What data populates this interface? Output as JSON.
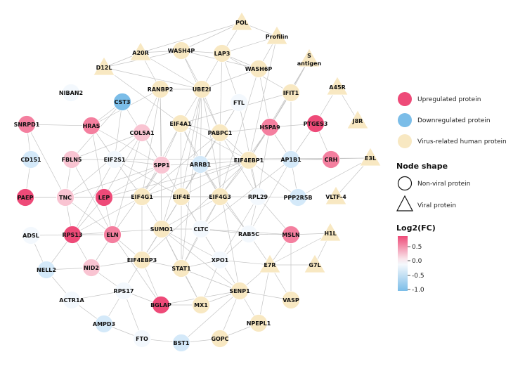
{
  "colors": {
    "up_strong": "#ee4a78",
    "up_mid": "#f47f9f",
    "up_light": "#f9c4d2",
    "neutral": "#f3f8fd",
    "down_light": "#d4e9f9",
    "down_strong": "#7bbde8",
    "virus": "#f8e8c2",
    "edge": "#c4c4c4",
    "node_stroke": "#ffffff",
    "legend_stroke": "#111111"
  },
  "nodes": [
    {
      "id": "POL",
      "shape": "tri",
      "color": "virus"
    },
    {
      "id": "Profilin",
      "shape": "tri",
      "color": "virus"
    },
    {
      "id": "A20R",
      "shape": "tri",
      "color": "virus"
    },
    {
      "id": "WASH4P",
      "shape": "circ",
      "color": "virus"
    },
    {
      "id": "LAP3",
      "shape": "circ",
      "color": "virus"
    },
    {
      "id": "S antigen",
      "shape": "tri",
      "color": "virus"
    },
    {
      "id": "D12L",
      "shape": "tri",
      "color": "virus"
    },
    {
      "id": "WASH6P",
      "shape": "circ",
      "color": "virus"
    },
    {
      "id": "NIBAN2",
      "shape": "circ",
      "color": "neutral"
    },
    {
      "id": "RANBP2",
      "shape": "circ",
      "color": "virus"
    },
    {
      "id": "UBE2I",
      "shape": "circ",
      "color": "virus"
    },
    {
      "id": "A45R",
      "shape": "tri",
      "color": "virus"
    },
    {
      "id": "IFIT1",
      "shape": "circ",
      "color": "virus"
    },
    {
      "id": "CST3",
      "shape": "circ",
      "color": "down_strong"
    },
    {
      "id": "FTL",
      "shape": "circ",
      "color": "neutral"
    },
    {
      "id": "SNRPD1",
      "shape": "circ",
      "color": "up_mid"
    },
    {
      "id": "HRAS",
      "shape": "circ",
      "color": "up_mid"
    },
    {
      "id": "EIF4A1",
      "shape": "circ",
      "color": "virus"
    },
    {
      "id": "PABPC1",
      "shape": "circ",
      "color": "virus"
    },
    {
      "id": "HSPA9",
      "shape": "circ",
      "color": "up_mid"
    },
    {
      "id": "PTGES3",
      "shape": "circ",
      "color": "up_strong"
    },
    {
      "id": "J8R",
      "shape": "tri",
      "color": "virus"
    },
    {
      "id": "COL5A1",
      "shape": "circ",
      "color": "up_light"
    },
    {
      "id": "CD151",
      "shape": "circ",
      "color": "down_light"
    },
    {
      "id": "FBLN5",
      "shape": "circ",
      "color": "up_light"
    },
    {
      "id": "EIF2S1",
      "shape": "circ",
      "color": "neutral"
    },
    {
      "id": "SPP1",
      "shape": "circ",
      "color": "up_light"
    },
    {
      "id": "ARRB1",
      "shape": "circ",
      "color": "down_light"
    },
    {
      "id": "EIF4EBP1",
      "shape": "circ",
      "color": "virus"
    },
    {
      "id": "AP1B1",
      "shape": "circ",
      "color": "down_light"
    },
    {
      "id": "CRH",
      "shape": "circ",
      "color": "up_mid"
    },
    {
      "id": "E3L",
      "shape": "tri",
      "color": "virus"
    },
    {
      "id": "PAEP",
      "shape": "circ",
      "color": "up_strong"
    },
    {
      "id": "TNC",
      "shape": "circ",
      "color": "up_light"
    },
    {
      "id": "LEP",
      "shape": "circ",
      "color": "up_strong"
    },
    {
      "id": "EIF4G1",
      "shape": "circ",
      "color": "virus"
    },
    {
      "id": "EIF4E",
      "shape": "circ",
      "color": "virus"
    },
    {
      "id": "EIF4G3",
      "shape": "circ",
      "color": "virus"
    },
    {
      "id": "RPL29",
      "shape": "circ",
      "color": "neutral"
    },
    {
      "id": "PPP2R5B",
      "shape": "circ",
      "color": "down_light"
    },
    {
      "id": "VLTF-4",
      "shape": "tri",
      "color": "virus"
    },
    {
      "id": "SUMO1",
      "shape": "circ",
      "color": "virus"
    },
    {
      "id": "CLTC",
      "shape": "circ",
      "color": "neutral"
    },
    {
      "id": "RAB5C",
      "shape": "circ",
      "color": "neutral"
    },
    {
      "id": "ADSL",
      "shape": "circ",
      "color": "neutral"
    },
    {
      "id": "RPS13",
      "shape": "circ",
      "color": "up_strong"
    },
    {
      "id": "ELN",
      "shape": "circ",
      "color": "up_mid"
    },
    {
      "id": "MSLN",
      "shape": "circ",
      "color": "up_mid"
    },
    {
      "id": "H1L",
      "shape": "tri",
      "color": "virus"
    },
    {
      "id": "NELL2",
      "shape": "circ",
      "color": "down_light"
    },
    {
      "id": "NID2",
      "shape": "circ",
      "color": "up_light"
    },
    {
      "id": "EIF4EBP3",
      "shape": "circ",
      "color": "virus"
    },
    {
      "id": "STAT1",
      "shape": "circ",
      "color": "virus"
    },
    {
      "id": "XPO1",
      "shape": "circ",
      "color": "neutral"
    },
    {
      "id": "E7R",
      "shape": "tri",
      "color": "virus"
    },
    {
      "id": "G7L",
      "shape": "tri",
      "color": "virus"
    },
    {
      "id": "ACTR1A",
      "shape": "circ",
      "color": "neutral"
    },
    {
      "id": "RPS17",
      "shape": "circ",
      "color": "neutral"
    },
    {
      "id": "BGLAP",
      "shape": "circ",
      "color": "up_strong"
    },
    {
      "id": "MX1",
      "shape": "circ",
      "color": "virus"
    },
    {
      "id": "SENP1",
      "shape": "circ",
      "color": "virus"
    },
    {
      "id": "VASP",
      "shape": "circ",
      "color": "virus"
    },
    {
      "id": "AMPD3",
      "shape": "circ",
      "color": "down_light"
    },
    {
      "id": "NPEPL1",
      "shape": "circ",
      "color": "virus"
    },
    {
      "id": "FTO",
      "shape": "circ",
      "color": "neutral"
    },
    {
      "id": "BST1",
      "shape": "circ",
      "color": "down_light"
    },
    {
      "id": "GOPC",
      "shape": "circ",
      "color": "virus"
    }
  ],
  "edges": [
    [
      "POL",
      "A20R"
    ],
    [
      "POL",
      "LAP3"
    ],
    [
      "POL",
      "WASH4P"
    ],
    [
      "POL",
      "Profilin"
    ],
    [
      "Profilin",
      "WASH6P"
    ],
    [
      "Profilin",
      "LAP3"
    ],
    [
      "Profilin",
      "EIF4EBP1"
    ],
    [
      "A20R",
      "D12L"
    ],
    [
      "A20R",
      "WASH4P"
    ],
    [
      "A20R",
      "RANBP2"
    ],
    [
      "A20R",
      "UBE2I"
    ],
    [
      "D12L",
      "WASH4P"
    ],
    [
      "D12L",
      "EIF4A1"
    ],
    [
      "D12L",
      "UBE2I"
    ],
    [
      "WASH4P",
      "WASH6P"
    ],
    [
      "WASH4P",
      "UBE2I"
    ],
    [
      "WASH4P",
      "LAP3"
    ],
    [
      "WASH4P",
      "PABPC1"
    ],
    [
      "LAP3",
      "WASH6P"
    ],
    [
      "LAP3",
      "UBE2I"
    ],
    [
      "LAP3",
      "IFIT1"
    ],
    [
      "LAP3",
      "FTL"
    ],
    [
      "LAP3",
      "PABPC1"
    ],
    [
      "S antigen",
      "IFIT1"
    ],
    [
      "S antigen",
      "HSPA9"
    ],
    [
      "S antigen",
      "EIF4EBP1"
    ],
    [
      "WASH6P",
      "HSPA9"
    ],
    [
      "WASH6P",
      "EIF4G3"
    ],
    [
      "WASH6P",
      "UBE2I"
    ],
    [
      "RANBP2",
      "UBE2I"
    ],
    [
      "RANBP2",
      "HRAS"
    ],
    [
      "RANBP2",
      "SPP1"
    ],
    [
      "RANBP2",
      "EIF4G1"
    ],
    [
      "RANBP2",
      "SUMO1"
    ],
    [
      "RANBP2",
      "COL5A1"
    ],
    [
      "UBE2I",
      "SUMO1"
    ],
    [
      "UBE2I",
      "PABPC1"
    ],
    [
      "UBE2I",
      "EIF4A1"
    ],
    [
      "UBE2I",
      "EIF4E"
    ],
    [
      "UBE2I",
      "ARRB1"
    ],
    [
      "UBE2I",
      "SENP1"
    ],
    [
      "UBE2I",
      "STAT1"
    ],
    [
      "A45R",
      "PTGES3"
    ],
    [
      "A45R",
      "J8R"
    ],
    [
      "IFIT1",
      "EIF4EBP1"
    ],
    [
      "IFIT1",
      "EIF4A1"
    ],
    [
      "IFIT1",
      "HSPA9"
    ],
    [
      "IFIT1",
      "AP1B1"
    ],
    [
      "CST3",
      "EIF2S1"
    ],
    [
      "CST3",
      "SPP1"
    ],
    [
      "CST3",
      "FBLN5"
    ],
    [
      "CST3",
      "HRAS"
    ],
    [
      "FTL",
      "PABPC1"
    ],
    [
      "FTL",
      "EIF4E"
    ],
    [
      "FTL",
      "RPL29"
    ],
    [
      "SNRPD1",
      "HRAS"
    ],
    [
      "SNRPD1",
      "TNC"
    ],
    [
      "SNRPD1",
      "CD151"
    ],
    [
      "HRAS",
      "SPP1"
    ],
    [
      "HRAS",
      "EIF2S1"
    ],
    [
      "HRAS",
      "LEP"
    ],
    [
      "EIF4A1",
      "PABPC1"
    ],
    [
      "EIF4A1",
      "EIF4G1"
    ],
    [
      "EIF4A1",
      "EIF4E"
    ],
    [
      "EIF4A1",
      "EIF4G3"
    ],
    [
      "EIF4A1",
      "EIF4EBP1"
    ],
    [
      "EIF4A1",
      "SPP1"
    ],
    [
      "EIF4A1",
      "ARRB1"
    ],
    [
      "PABPC1",
      "EIF4G1"
    ],
    [
      "PABPC1",
      "EIF4G3"
    ],
    [
      "PABPC1",
      "EIF4E"
    ],
    [
      "PABPC1",
      "EIF4EBP1"
    ],
    [
      "PABPC1",
      "HSPA9"
    ],
    [
      "PABPC1",
      "RPL29"
    ],
    [
      "PABPC1",
      "ARRB1"
    ],
    [
      "HSPA9",
      "EIF4EBP1"
    ],
    [
      "HSPA9",
      "PTGES3"
    ],
    [
      "HSPA9",
      "AP1B1"
    ],
    [
      "HSPA9",
      "RPL29"
    ],
    [
      "HSPA9",
      "EIF4G3"
    ],
    [
      "PTGES3",
      "CRH"
    ],
    [
      "PTGES3",
      "AP1B1"
    ],
    [
      "COL5A1",
      "SPP1"
    ],
    [
      "COL5A1",
      "FBLN5"
    ],
    [
      "COL5A1",
      "TNC"
    ],
    [
      "COL5A1",
      "ELN"
    ],
    [
      "COL5A1",
      "LEP"
    ],
    [
      "FBLN5",
      "ELN"
    ],
    [
      "FBLN5",
      "EIF2S1"
    ],
    [
      "FBLN5",
      "TNC"
    ],
    [
      "EIF2S1",
      "EIF4E"
    ],
    [
      "EIF2S1",
      "EIF4G1"
    ],
    [
      "EIF2S1",
      "RPS13"
    ],
    [
      "EIF2S1",
      "SPP1"
    ],
    [
      "SPP1",
      "LEP"
    ],
    [
      "SPP1",
      "ELN"
    ],
    [
      "SPP1",
      "EIF4G1"
    ],
    [
      "SPP1",
      "ARRB1"
    ],
    [
      "SPP1",
      "TNC"
    ],
    [
      "SPP1",
      "CLTC"
    ],
    [
      "ARRB1",
      "EIF4E"
    ],
    [
      "ARRB1",
      "EIF4G3"
    ],
    [
      "ARRB1",
      "CLTC"
    ],
    [
      "ARRB1",
      "EIF4EBP1"
    ],
    [
      "ARRB1",
      "SUMO1"
    ],
    [
      "ARRB1",
      "RAB5C"
    ],
    [
      "EIF4EBP1",
      "EIF4E"
    ],
    [
      "EIF4EBP1",
      "EIF4G1"
    ],
    [
      "EIF4EBP1",
      "EIF4G3"
    ],
    [
      "EIF4EBP1",
      "AP1B1"
    ],
    [
      "EIF4EBP1",
      "RPL29"
    ],
    [
      "EIF4EBP1",
      "PPP2R5B"
    ],
    [
      "EIF4EBP1",
      "EIF4EBP3"
    ],
    [
      "EIF4EBP1",
      "LEP"
    ],
    [
      "AP1B1",
      "CRH"
    ],
    [
      "AP1B1",
      "CLTC"
    ],
    [
      "AP1B1",
      "RAB5C"
    ],
    [
      "AP1B1",
      "E3L"
    ],
    [
      "AP1B1",
      "PPP2R5B"
    ],
    [
      "E3L",
      "VLTF-4"
    ],
    [
      "E3L",
      "PPP2R5B"
    ],
    [
      "E3L",
      "EIF2S1"
    ],
    [
      "PAEP",
      "LEP"
    ],
    [
      "PAEP",
      "TNC"
    ],
    [
      "PAEP",
      "CD151"
    ],
    [
      "TNC",
      "LEP"
    ],
    [
      "TNC",
      "RPS13"
    ],
    [
      "TNC",
      "ELN"
    ],
    [
      "LEP",
      "EIF4G1"
    ],
    [
      "LEP",
      "ELN"
    ],
    [
      "LEP",
      "RPS13"
    ],
    [
      "LEP",
      "EIF4E"
    ],
    [
      "EIF4G1",
      "EIF4E"
    ],
    [
      "EIF4G1",
      "EIF4G3"
    ],
    [
      "EIF4G1",
      "SUMO1"
    ],
    [
      "EIF4G1",
      "EIF4EBP3"
    ],
    [
      "EIF4G1",
      "RPS13"
    ],
    [
      "EIF4E",
      "EIF4G3"
    ],
    [
      "EIF4E",
      "SUMO1"
    ],
    [
      "EIF4E",
      "EIF4EBP3"
    ],
    [
      "EIF4E",
      "CLTC"
    ],
    [
      "EIF4E",
      "XPO1"
    ],
    [
      "EIF4E",
      "STAT1"
    ],
    [
      "EIF4G3",
      "RPL29"
    ],
    [
      "EIF4G3",
      "CLTC"
    ],
    [
      "EIF4G3",
      "RAB5C"
    ],
    [
      "EIF4G3",
      "SUMO1"
    ],
    [
      "EIF4G3",
      "STAT1"
    ],
    [
      "RPL29",
      "RAB5C"
    ],
    [
      "RPL29",
      "PPP2R5B"
    ],
    [
      "RPL29",
      "MSLN"
    ],
    [
      "RPL29",
      "XPO1"
    ],
    [
      "SUMO1",
      "STAT1"
    ],
    [
      "SUMO1",
      "SENP1"
    ],
    [
      "SUMO1",
      "CLTC"
    ],
    [
      "SUMO1",
      "EIF4EBP3"
    ],
    [
      "SUMO1",
      "MX1"
    ],
    [
      "SUMO1",
      "XPO1"
    ],
    [
      "SUMO1",
      "RPS13"
    ],
    [
      "CLTC",
      "RAB5C"
    ],
    [
      "CLTC",
      "XPO1"
    ],
    [
      "CLTC",
      "STAT1"
    ],
    [
      "CLTC",
      "MSLN"
    ],
    [
      "RAB5C",
      "XPO1"
    ],
    [
      "RAB5C",
      "E7R"
    ],
    [
      "RAB5C",
      "MSLN"
    ],
    [
      "ADSL",
      "RPS13"
    ],
    [
      "ADSL",
      "NELL2"
    ],
    [
      "RPS13",
      "ELN"
    ],
    [
      "RPS13",
      "NID2"
    ],
    [
      "RPS13",
      "NELL2"
    ],
    [
      "ELN",
      "NID2"
    ],
    [
      "ELN",
      "EIF4EBP3"
    ],
    [
      "ELN",
      "BGLAP"
    ],
    [
      "MSLN",
      "H1L"
    ],
    [
      "MSLN",
      "VASP"
    ],
    [
      "MSLN",
      "E7R"
    ],
    [
      "H1L",
      "G7L"
    ],
    [
      "H1L",
      "E7R"
    ],
    [
      "NELL2",
      "NID2"
    ],
    [
      "NELL2",
      "ACTR1A"
    ],
    [
      "NID2",
      "EIF4EBP3"
    ],
    [
      "NID2",
      "RPS17"
    ],
    [
      "EIF4EBP3",
      "STAT1"
    ],
    [
      "EIF4EBP3",
      "RPS17"
    ],
    [
      "EIF4EBP3",
      "BGLAP"
    ],
    [
      "STAT1",
      "MX1"
    ],
    [
      "STAT1",
      "SENP1"
    ],
    [
      "STAT1",
      "XPO1"
    ],
    [
      "XPO1",
      "SENP1"
    ],
    [
      "XPO1",
      "E7R"
    ],
    [
      "XPO1",
      "MX1"
    ],
    [
      "E7R",
      "G7L"
    ],
    [
      "E7R",
      "SENP1"
    ],
    [
      "E7R",
      "VASP"
    ],
    [
      "E7R",
      "NPEPL1"
    ],
    [
      "ACTR1A",
      "AMPD3"
    ],
    [
      "ACTR1A",
      "RPS17"
    ],
    [
      "RPS17",
      "BGLAP"
    ],
    [
      "RPS17",
      "FTO"
    ],
    [
      "RPS17",
      "AMPD3"
    ],
    [
      "BGLAP",
      "MX1"
    ],
    [
      "BGLAP",
      "SENP1"
    ],
    [
      "MX1",
      "SENP1"
    ],
    [
      "SENP1",
      "GOPC"
    ],
    [
      "SENP1",
      "NPEPL1"
    ],
    [
      "SENP1",
      "BST1"
    ],
    [
      "SENP1",
      "VASP"
    ],
    [
      "AMPD3",
      "FTO"
    ],
    [
      "FTO",
      "BST1"
    ],
    [
      "BST1",
      "GOPC"
    ],
    [
      "GOPC",
      "NPEPL1"
    ]
  ],
  "legend": {
    "color_items": [
      {
        "label": "Upregulated protein",
        "color": "up_strong"
      },
      {
        "label": "Downregulated protein",
        "color": "down_strong"
      },
      {
        "label": "Virus-related human protein",
        "color": "virus"
      }
    ],
    "shape_title": "Node shape",
    "shape_items": [
      {
        "label": "Non-viral protein",
        "shape": "circ"
      },
      {
        "label": "Viral protein",
        "shape": "tri"
      }
    ],
    "scale_title": "Log2(FC)",
    "scale_ticks": [
      "0.5",
      "0.0",
      "-0.5",
      "-1.0"
    ]
  }
}
